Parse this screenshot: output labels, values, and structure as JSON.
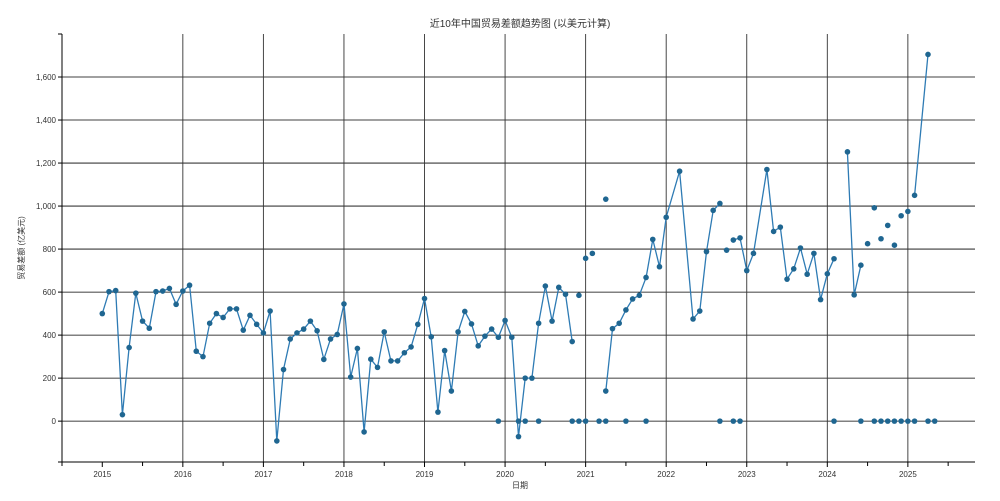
{
  "chart_data": {
    "type": "line",
    "title": "近10年中国贸易差额趋势图 (以美元计算)",
    "xlabel": "日期",
    "ylabel": "贸易差额 (亿美元)",
    "x_ticks": [
      {
        "year": 2015,
        "label": "2015"
      },
      {
        "year": 2016,
        "label": "2016"
      },
      {
        "year": 2017,
        "label": "2017"
      },
      {
        "year": 2018,
        "label": "2018"
      },
      {
        "year": 2019,
        "label": "2019"
      },
      {
        "year": 2020,
        "label": "2020"
      },
      {
        "year": 2021,
        "label": "2021"
      },
      {
        "year": 2022,
        "label": "2022"
      },
      {
        "year": 2023,
        "label": "2023"
      },
      {
        "year": 2024,
        "label": "2024"
      },
      {
        "year": 2025,
        "label": "2025"
      }
    ],
    "y_ticks": [
      {
        "value": 0,
        "label": "0"
      },
      {
        "value": 200,
        "label": "200"
      },
      {
        "value": 400,
        "label": "400"
      },
      {
        "value": 600,
        "label": "600"
      },
      {
        "value": 800,
        "label": "800"
      },
      {
        "value": 1000,
        "label": "1,000"
      },
      {
        "value": 1200,
        "label": "1,200"
      },
      {
        "value": 1400,
        "label": "1,400"
      },
      {
        "value": 1600,
        "label": "1,600"
      }
    ],
    "xlim": [
      "2014-07",
      "2025-11"
    ],
    "ylim": [
      -190,
      1800
    ],
    "grid": true,
    "colors": {
      "line": "#2e7bb4",
      "point": "#1f6691",
      "grid": "#000000"
    },
    "series": [
      {
        "points": [
          [
            "2015-01",
            500
          ],
          [
            "2015-02",
            602
          ],
          [
            "2015-03",
            607
          ],
          [
            "2015-04",
            30
          ],
          [
            "2015-05",
            342
          ],
          [
            "2015-06",
            595
          ],
          [
            "2015-07",
            465
          ],
          [
            "2015-08",
            432
          ],
          [
            "2015-09",
            602
          ],
          [
            "2015-10",
            605
          ],
          [
            "2015-11",
            617
          ],
          [
            "2015-12",
            543
          ],
          [
            "2016-01",
            605
          ],
          [
            "2016-02",
            632
          ],
          [
            "2016-03",
            325
          ],
          [
            "2016-04",
            300
          ],
          [
            "2016-05",
            455
          ],
          [
            "2016-06",
            500
          ],
          [
            "2016-07",
            482
          ],
          [
            "2016-08",
            522
          ],
          [
            "2016-09",
            522
          ],
          [
            "2016-10",
            423
          ],
          [
            "2016-11",
            492
          ],
          [
            "2016-12",
            450
          ],
          [
            "2017-01",
            410
          ],
          [
            "2017-02",
            512
          ],
          [
            "2017-03",
            -92
          ],
          [
            "2017-04",
            240
          ],
          [
            "2017-05",
            382
          ],
          [
            "2017-06",
            410
          ],
          [
            "2017-07",
            428
          ],
          [
            "2017-08",
            465
          ],
          [
            "2017-09",
            420
          ],
          [
            "2017-10",
            287
          ],
          [
            "2017-11",
            382
          ],
          [
            "2017-12",
            403
          ],
          [
            "2018-01",
            545
          ],
          [
            "2018-02",
            205
          ],
          [
            "2018-03",
            338
          ],
          [
            "2018-04",
            -50
          ],
          [
            "2018-05",
            288
          ],
          [
            "2018-06",
            250
          ],
          [
            "2018-07",
            415
          ],
          [
            "2018-08",
            280
          ],
          [
            "2018-09",
            280
          ],
          [
            "2018-10",
            318
          ],
          [
            "2018-11",
            345
          ],
          [
            "2018-12",
            450
          ],
          [
            "2019-01",
            570
          ],
          [
            "2019-02",
            392
          ],
          [
            "2019-03",
            42
          ],
          [
            "2019-04",
            328
          ],
          [
            "2019-05",
            140
          ],
          [
            "2019-06",
            415
          ],
          [
            "2019-07",
            510
          ],
          [
            "2019-08",
            452
          ],
          [
            "2019-09",
            350
          ],
          [
            "2019-10",
            395
          ],
          [
            "2019-11",
            428
          ],
          [
            "2019-12",
            390
          ],
          [
            "2020-01",
            468
          ],
          [
            "2020-02",
            390
          ],
          [
            "2020-03",
            -72
          ],
          [
            "2020-04",
            200
          ],
          [
            "2020-05",
            200
          ],
          [
            "2020-06",
            455
          ],
          [
            "2020-07",
            628
          ],
          [
            "2020-08",
            465
          ],
          [
            "2020-09",
            622
          ],
          [
            "2020-10",
            590
          ],
          [
            "2020-11",
            370
          ]
        ]
      },
      {
        "points": [
          [
            "2021-04",
            140
          ],
          [
            "2021-05",
            430
          ],
          [
            "2021-06",
            455
          ],
          [
            "2021-07",
            517
          ],
          [
            "2021-08",
            568
          ],
          [
            "2021-09",
            585
          ],
          [
            "2021-10",
            668
          ],
          [
            "2021-11",
            845
          ],
          [
            "2021-12",
            718
          ],
          [
            "2022-01",
            948
          ],
          [
            "2022-03",
            1162
          ],
          [
            "2022-05",
            475
          ],
          [
            "2022-06",
            512
          ],
          [
            "2022-07",
            788
          ],
          [
            "2022-08",
            980
          ],
          [
            "2022-09",
            1012
          ]
        ]
      },
      {
        "points": [
          [
            "2022-11",
            842
          ],
          [
            "2022-12",
            852
          ],
          [
            "2023-01",
            700
          ],
          [
            "2023-02",
            780
          ],
          [
            "2023-04",
            1170
          ],
          [
            "2023-05",
            882
          ],
          [
            "2023-06",
            902
          ],
          [
            "2023-07",
            660
          ],
          [
            "2023-08",
            708
          ],
          [
            "2023-09",
            805
          ],
          [
            "2023-10",
            683
          ],
          [
            "2023-11",
            780
          ],
          [
            "2023-12",
            565
          ],
          [
            "2024-01",
            685
          ],
          [
            "2024-02",
            755
          ]
        ]
      },
      {
        "points": [
          [
            "2024-04",
            1252
          ],
          [
            "2024-05",
            587
          ],
          [
            "2024-06",
            725
          ]
        ]
      },
      {
        "points": [
          [
            "2025-02",
            1050
          ],
          [
            "2025-04",
            1705
          ]
        ]
      }
    ],
    "isolated_points": [
      [
        "2019-12",
        0
      ],
      [
        "2020-03",
        0
      ],
      [
        "2020-04",
        0
      ],
      [
        "2020-06",
        0
      ],
      [
        "2020-11",
        0
      ],
      [
        "2020-12",
        0
      ],
      [
        "2021-01",
        0
      ],
      [
        "2021-03",
        0
      ],
      [
        "2021-04",
        0
      ],
      [
        "2021-07",
        0
      ],
      [
        "2021-10",
        0
      ],
      [
        "2020-12",
        585
      ],
      [
        "2021-01",
        757
      ],
      [
        "2021-02",
        780
      ],
      [
        "2021-04",
        1032
      ],
      [
        "2022-09",
        0
      ],
      [
        "2022-10",
        795
      ],
      [
        "2022-11",
        0
      ],
      [
        "2022-12",
        0
      ],
      [
        "2024-02",
        0
      ],
      [
        "2024-06",
        0
      ],
      [
        "2024-07",
        825
      ],
      [
        "2024-08",
        992
      ],
      [
        "2024-08",
        0
      ],
      [
        "2024-09",
        848
      ],
      [
        "2024-09",
        0
      ],
      [
        "2024-10",
        910
      ],
      [
        "2024-10",
        0
      ],
      [
        "2024-11",
        818
      ],
      [
        "2024-11",
        0
      ],
      [
        "2024-12",
        955
      ],
      [
        "2024-12",
        0
      ],
      [
        "2025-01",
        975
      ],
      [
        "2025-01",
        0
      ],
      [
        "2025-02",
        0
      ],
      [
        "2025-04",
        0
      ],
      [
        "2025-05",
        0
      ]
    ]
  }
}
